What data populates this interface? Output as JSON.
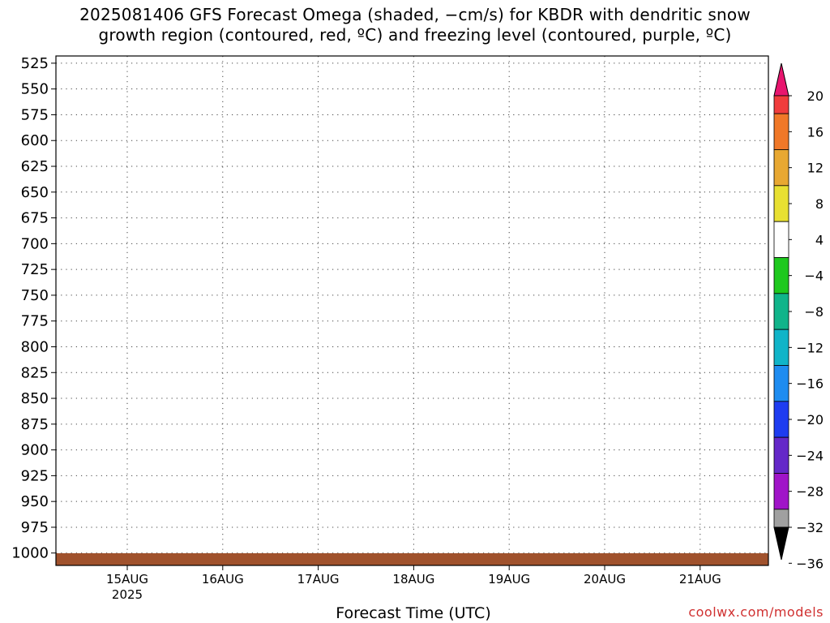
{
  "chart_data": {
    "type": "heatmap",
    "title": [
      "2025081406 GFS Forecast Omega (shaded, −cm/s) for KBDR with dendritic snow",
      "growth region (contoured, red, ºC) and freezing level (contoured, purple, ºC)"
    ],
    "xlabel": "Forecast Time (UTC)",
    "ylabel": "",
    "y_axis": {
      "quantity": "pressure level",
      "ticks": [
        525,
        550,
        575,
        600,
        625,
        650,
        675,
        700,
        725,
        750,
        775,
        800,
        825,
        850,
        875,
        900,
        925,
        950,
        975,
        1000
      ],
      "range": [
        1012,
        518
      ],
      "inverted": true
    },
    "x_axis": {
      "ticks": [
        {
          "label": "15AUG",
          "sublabel": "2025"
        },
        {
          "label": "16AUG",
          "sublabel": ""
        },
        {
          "label": "17AUG",
          "sublabel": ""
        },
        {
          "label": "18AUG",
          "sublabel": ""
        },
        {
          "label": "19AUG",
          "sublabel": ""
        },
        {
          "label": "20AUG",
          "sublabel": ""
        },
        {
          "label": "21AUG",
          "sublabel": ""
        }
      ]
    },
    "grid": true,
    "colorbar": {
      "placement": "right",
      "tick_labels": [
        "20",
        "16",
        "12",
        "8",
        "4",
        "−4",
        "−8",
        "−12",
        "−16",
        "−20",
        "−24",
        "−28",
        "−32",
        "−36"
      ],
      "colors": [
        "#e8156e",
        "#f03c3c",
        "#f07828",
        "#e8a832",
        "#e8e032",
        "#ffffff",
        "#1ec81e",
        "#10b48a",
        "#10b4c8",
        "#1e8cf0",
        "#1e3cf0",
        "#6428c8",
        "#a014c8",
        "#a0a0a0",
        "#000000"
      ]
    },
    "surface_color": "#a0522d"
  },
  "credit": "coolwx.com/models"
}
